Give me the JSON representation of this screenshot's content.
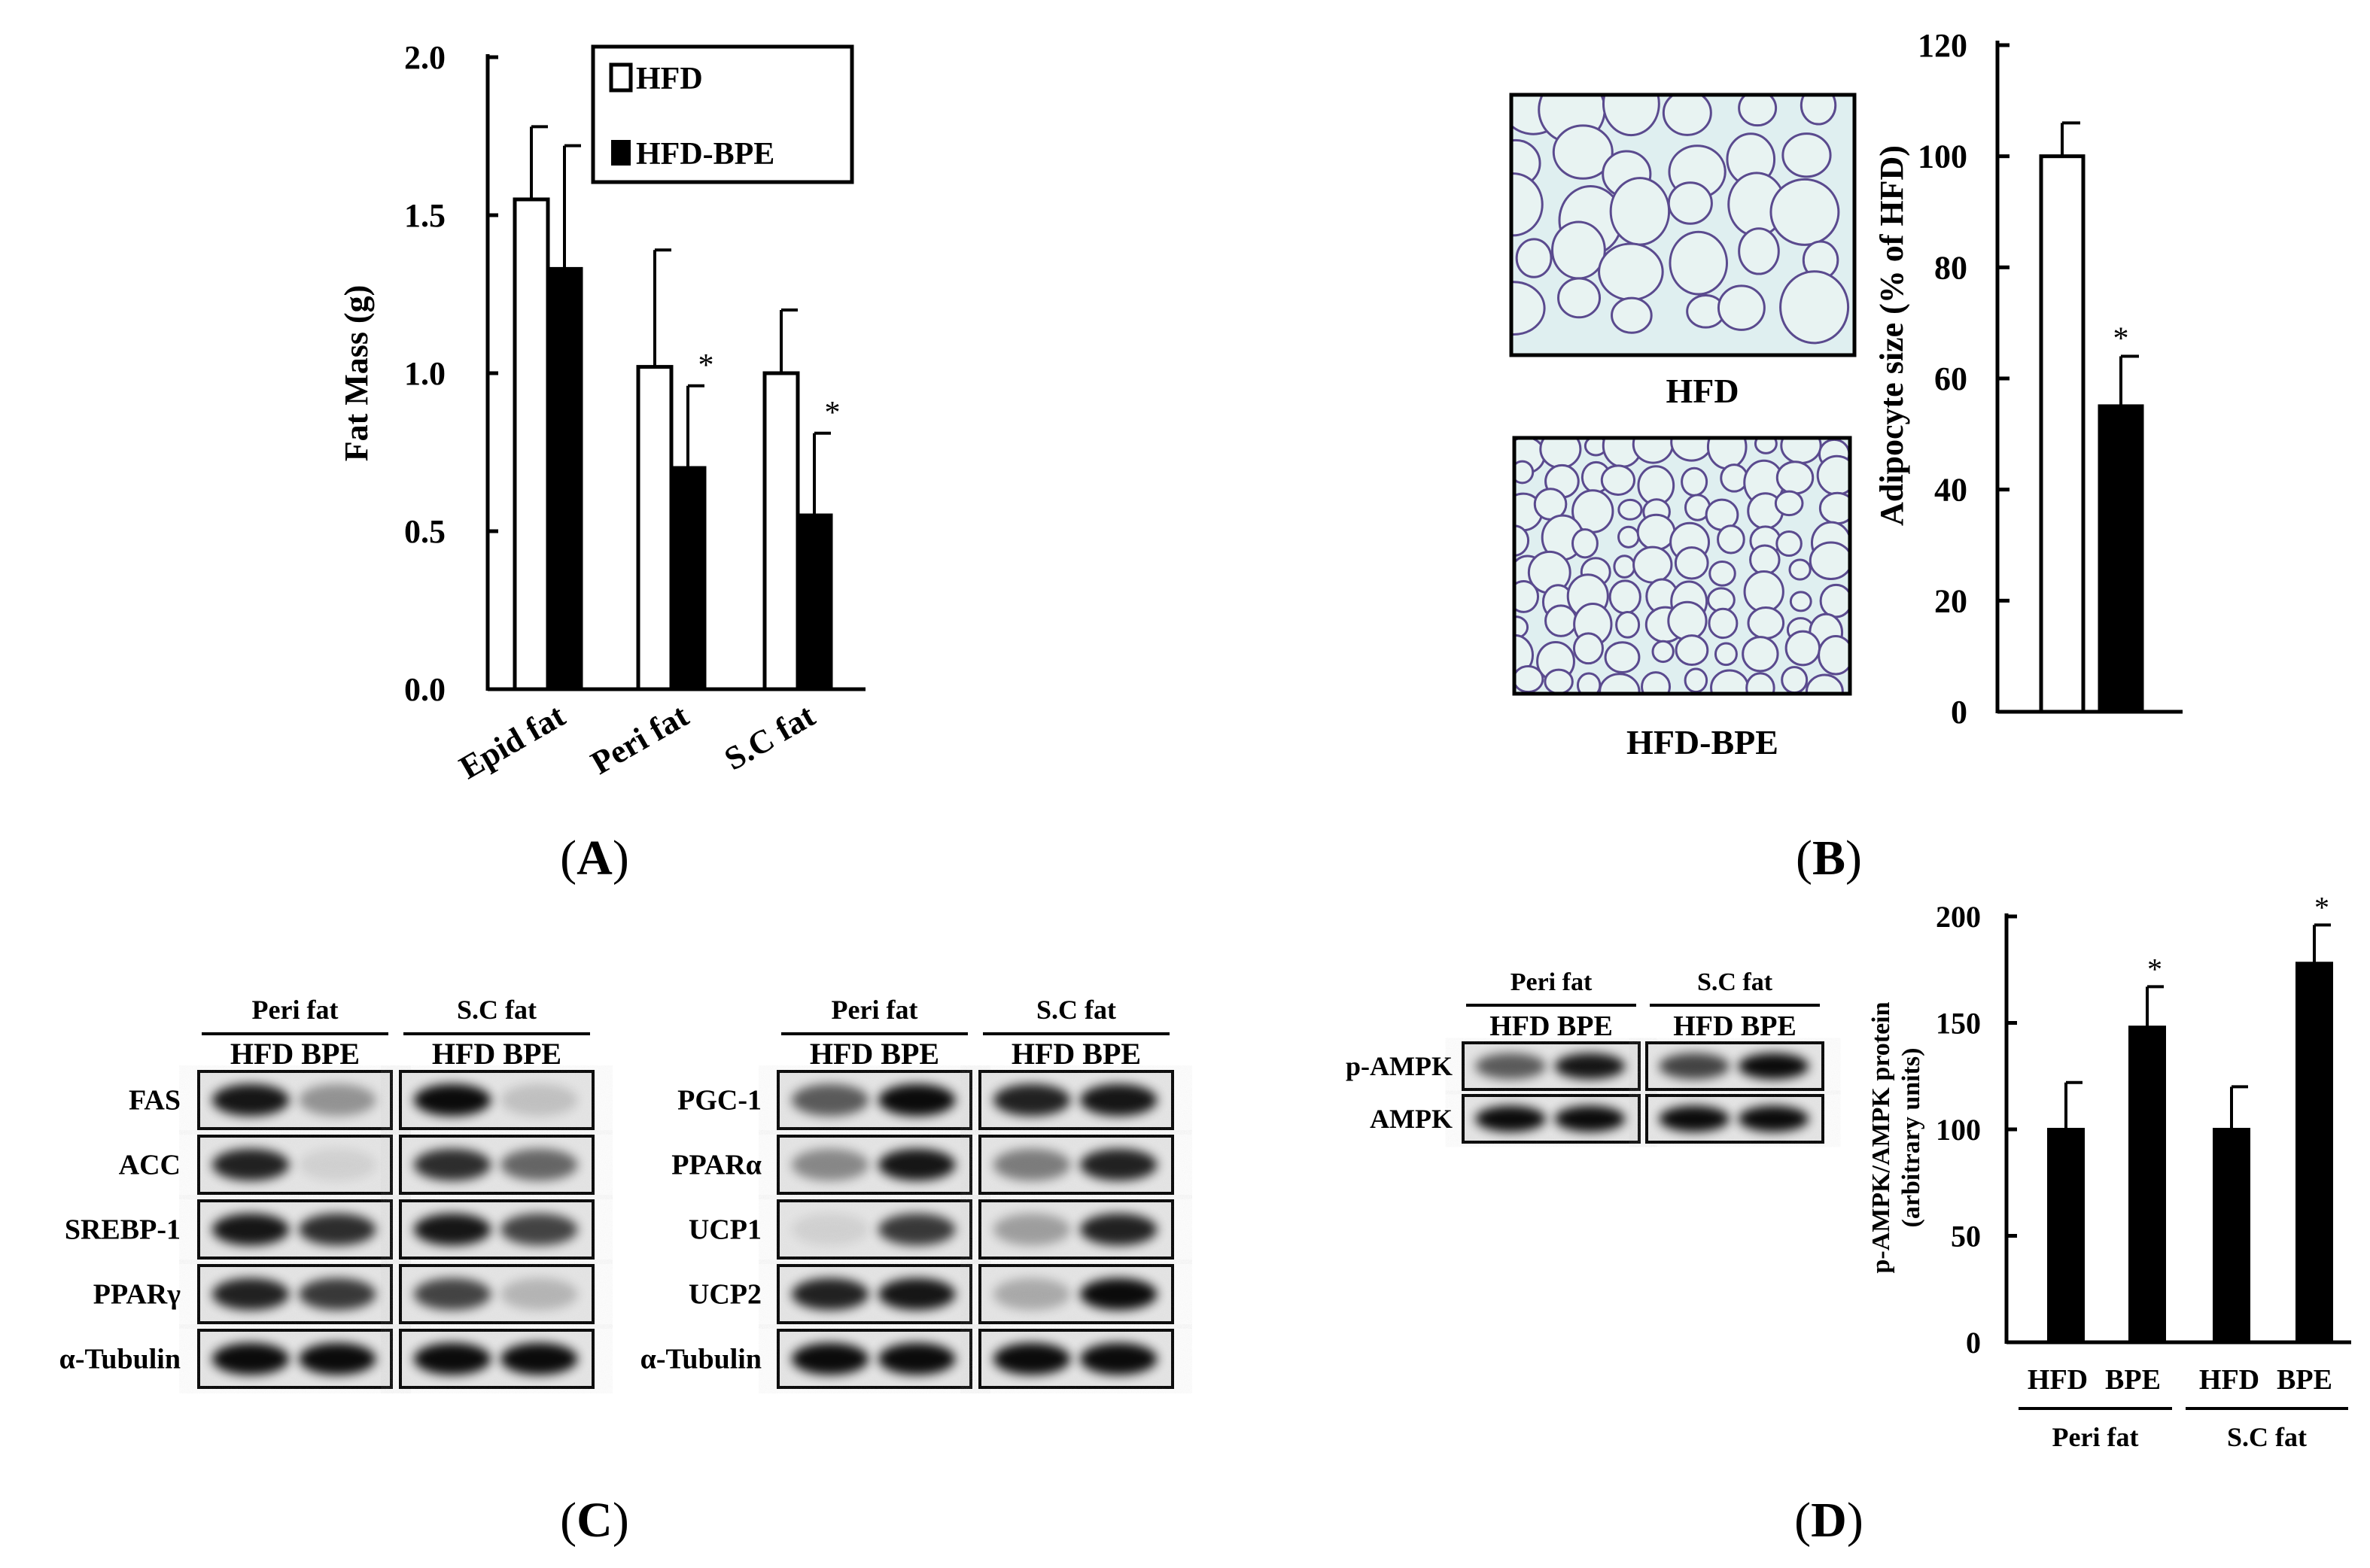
{
  "panel_labels": [
    "A",
    "B",
    "C",
    "D"
  ],
  "colors": {
    "hfd": "#ffffff",
    "bpe": "#000000",
    "axis": "#000000",
    "histo_bg": "#dfeff0",
    "histo_line": "#5a4a8e"
  },
  "chart_data": [
    {
      "id": "A",
      "type": "bar",
      "categories": [
        "Epid fat",
        "Peri fat",
        "S.C fat"
      ],
      "series": [
        {
          "name": "HFD",
          "values": [
            1.55,
            1.02,
            1.0
          ],
          "errors": [
            0.23,
            0.37,
            0.2
          ]
        },
        {
          "name": "HFD-BPE",
          "values": [
            1.33,
            0.7,
            0.55
          ],
          "errors": [
            0.39,
            0.26,
            0.26
          ]
        }
      ],
      "significance": [
        [
          "",
          ""
        ],
        [
          "",
          "*"
        ],
        [
          "",
          "*"
        ]
      ],
      "ylabel": "Fat Mass (g)",
      "ylim": [
        0,
        2.0
      ],
      "yticks": [
        "0.0",
        "0.5",
        "1.0",
        "1.5",
        "2.0"
      ],
      "legend": "top-right"
    },
    {
      "id": "B",
      "type": "bar",
      "categories": [
        "HFD",
        "HFD-BPE"
      ],
      "values": [
        100,
        55
      ],
      "errors": [
        6,
        9
      ],
      "significance": [
        "",
        "*"
      ],
      "ylabel": "Adipocyte size (% of HFD)",
      "ylim": [
        0,
        120
      ],
      "yticks": [
        "0",
        "20",
        "40",
        "60",
        "80",
        "100",
        "120"
      ],
      "image_labels": [
        "HFD",
        "HFD-BPE"
      ]
    },
    {
      "id": "D",
      "type": "bar",
      "groups": [
        "Peri fat",
        "S.C fat"
      ],
      "categories": [
        "HFD",
        "BPE",
        "HFD",
        "BPE"
      ],
      "values": [
        100,
        148,
        100,
        178
      ],
      "errors": [
        22,
        19,
        20,
        18
      ],
      "significance": [
        "",
        "*",
        "",
        "*"
      ],
      "ylabel": "p-AMPK/AMPK protein",
      "ylabel2": "(arbitrary  units)",
      "ylim": [
        0,
        200
      ],
      "yticks": [
        "0",
        "50",
        "100",
        "150",
        "200"
      ]
    }
  ],
  "blots": {
    "c_left": {
      "groups": [
        "Peri fat",
        "S.C fat"
      ],
      "lanes": "HFD BPE",
      "rows": [
        {
          "label": "FAS",
          "bands": [
            0.9,
            0.35,
            0.95,
            0.15
          ]
        },
        {
          "label": "ACC",
          "bands": [
            0.85,
            0.08,
            0.8,
            0.55
          ]
        },
        {
          "label": "SREBP-1",
          "bands": [
            0.9,
            0.8,
            0.9,
            0.7
          ]
        },
        {
          "label": "PPARγ",
          "bands": [
            0.85,
            0.75,
            0.7,
            0.2
          ]
        },
        {
          "label": "α-Tubulin",
          "bands": [
            0.95,
            0.95,
            0.95,
            0.95
          ]
        }
      ]
    },
    "c_right": {
      "groups": [
        "Peri fat",
        "S.C fat"
      ],
      "lanes": "HFD BPE",
      "rows": [
        {
          "label": "PGC-1",
          "bands": [
            0.6,
            0.95,
            0.85,
            0.9
          ]
        },
        {
          "label": "PPARα",
          "bands": [
            0.4,
            0.9,
            0.45,
            0.85
          ]
        },
        {
          "label": "UCP1",
          "bands": [
            0.08,
            0.75,
            0.3,
            0.85
          ]
        },
        {
          "label": "UCP2",
          "bands": [
            0.85,
            0.9,
            0.25,
            0.95
          ]
        },
        {
          "label": "α-Tubulin",
          "bands": [
            0.95,
            0.95,
            0.95,
            0.95
          ]
        }
      ]
    },
    "d": {
      "groups": [
        "Peri fat",
        "S.C fat"
      ],
      "lanes": "HFD BPE",
      "rows": [
        {
          "label": "p-AMPK",
          "bands": [
            0.6,
            0.9,
            0.7,
            0.95
          ]
        },
        {
          "label": "AMPK",
          "bands": [
            0.95,
            0.95,
            0.95,
            0.95
          ]
        }
      ]
    }
  }
}
